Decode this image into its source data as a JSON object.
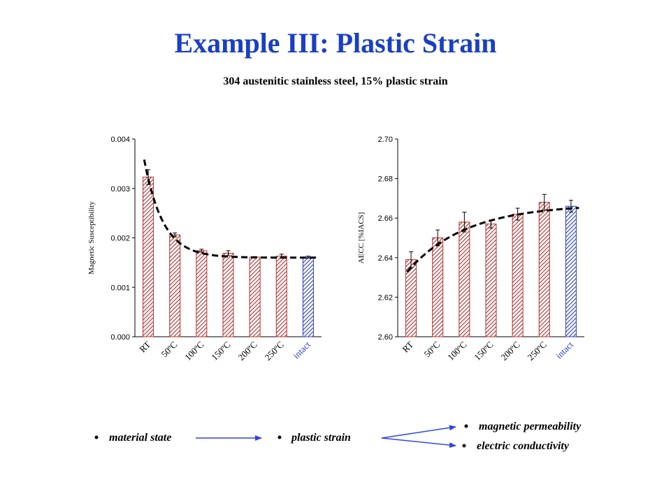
{
  "slide": {
    "title": "Example III: Plastic Strain",
    "subtitle": "304 austenitic stainless steel, 15% plastic strain"
  },
  "colors": {
    "title": "#1a3fc4",
    "bar_red": "#b03030",
    "bar_blue": "#2a3fc0",
    "arrow": "#3344dd"
  },
  "chart_data": [
    {
      "type": "bar",
      "categories": [
        "RT",
        "50ºC",
        "100ºC",
        "150ºC",
        "200ºC",
        "250ºC",
        "intact"
      ],
      "values": [
        0.00323,
        0.00206,
        0.00174,
        0.00169,
        0.00161,
        0.00163,
        0.00161
      ],
      "errors": [
        0.00015,
        4e-05,
        3e-05,
        5e-05,
        1e-05,
        4e-05,
        2e-05
      ],
      "ylabel": "Magnetic Susceptibility",
      "yticks": [
        "0.000",
        "0.001",
        "0.002",
        "0.003",
        "0.004"
      ],
      "ylim": [
        0,
        0.004
      ],
      "trend": "dashed exponential decay fit",
      "highlight_category": "intact"
    },
    {
      "type": "bar",
      "categories": [
        "RT",
        "50ºC",
        "100ºC",
        "150ºC",
        "200ºC",
        "250ºC",
        "intact"
      ],
      "values": [
        2.639,
        2.65,
        2.658,
        2.657,
        2.662,
        2.668,
        2.666
      ],
      "errors": [
        0.004,
        0.004,
        0.005,
        0.002,
        0.003,
        0.004,
        0.003
      ],
      "ylabel": "AECC [%IACS]",
      "yticks": [
        "2.60",
        "2.62",
        "2.64",
        "2.66",
        "2.68",
        "2.70"
      ],
      "ylim": [
        2.6,
        2.7
      ],
      "trend": "dashed saturating fit",
      "highlight_category": "intact"
    }
  ],
  "flow": {
    "items": [
      "material state",
      "plastic strain"
    ],
    "outputs": [
      "magnetic permeability",
      "electric conductivity"
    ]
  }
}
